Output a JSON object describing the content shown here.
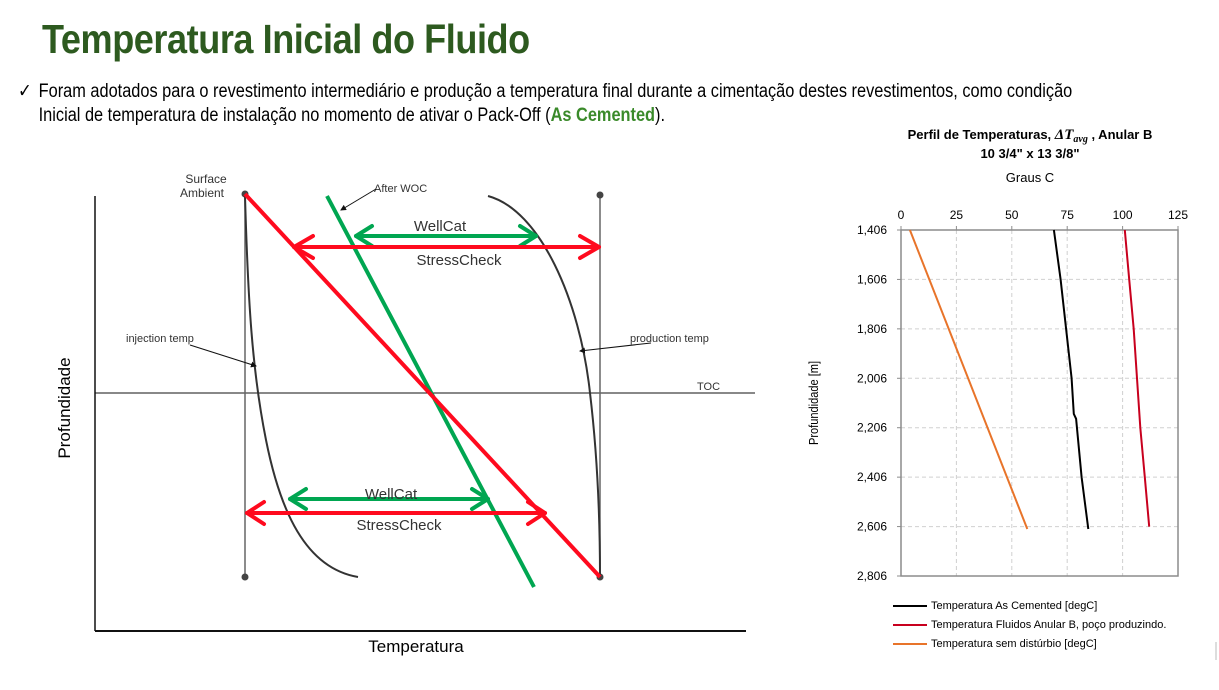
{
  "slide": {
    "title": "Temperatura Inicial do Fluido",
    "bullet": {
      "icon": "check-icon",
      "glyph": "✓",
      "line1": "Foram adotados  para o revestimento intermediário e produção a temperatura final durante a cimentação destes revestimentos, como condição",
      "line2_pre": "Inicial  de temperatura de instalação no momento de ativar o Pack-Off (",
      "highlight": "As Cemented",
      "line2_post": ")."
    }
  },
  "diagram": {
    "ylabel": "Profundidade",
    "xlabel": "Temperatura",
    "labels": {
      "surface": "Surface",
      "ambient": "Ambient",
      "after_woc": "After WOC",
      "wellcat_top": "WellCat",
      "stresscheck_top": "StressCheck",
      "injection": "injection temp",
      "production": "production temp",
      "toc": "TOC",
      "wellcat_bottom": "WellCat",
      "stresscheck_bottom": "StressCheck"
    },
    "colors": {
      "red": "#ff0a1e",
      "green": "#00a651",
      "curve": "#333333"
    }
  },
  "chart_data": {
    "type": "line",
    "title": "Perfil de Temperaturas, ΔT_avg , Anular B",
    "title_parts": {
      "pre": "Perfil de Temperaturas, ",
      "symbol": "ΔT",
      "subscript": "avg",
      "post": " , Anular B"
    },
    "subtitle": "10 3/4\" x 13  3/8\"",
    "xlabel": "Graus C",
    "ylabel": "Profundidade [m]",
    "x_ticks": [
      "0",
      "25",
      "50",
      "75",
      "100",
      "125"
    ],
    "y_ticks": [
      "1,406",
      "1,606",
      "1,806",
      "2,006",
      "2,206",
      "2,406",
      "2,606",
      "2,806"
    ],
    "xlim": [
      0,
      125
    ],
    "ylim": [
      1406,
      2806
    ],
    "y_inverted": true,
    "x_axis_position": "top",
    "grid": true,
    "legend_position": "bottom",
    "series": [
      {
        "name": "Temperatura As Cemented [degC]",
        "color": "#000000",
        "points": [
          [
            69,
            1406
          ],
          [
            72,
            1606
          ],
          [
            74.5,
            1806
          ],
          [
            77,
            2006
          ],
          [
            78,
            2150
          ],
          [
            79,
            2170
          ],
          [
            81.5,
            2406
          ],
          [
            84.5,
            2616
          ]
        ]
      },
      {
        "name": "Temperatura Fluidos Anular B, poço produzindo.",
        "color": "#c8001e",
        "points": [
          [
            101,
            1406
          ],
          [
            103,
            1606
          ],
          [
            105,
            1806
          ],
          [
            106.5,
            2006
          ],
          [
            108,
            2206
          ],
          [
            110,
            2406
          ],
          [
            112,
            2606
          ]
        ]
      },
      {
        "name": "Temperatura sem distúrbio [degC]",
        "color": "#e8742a",
        "points": [
          [
            4,
            1406
          ],
          [
            57,
            2616
          ]
        ]
      }
    ]
  }
}
